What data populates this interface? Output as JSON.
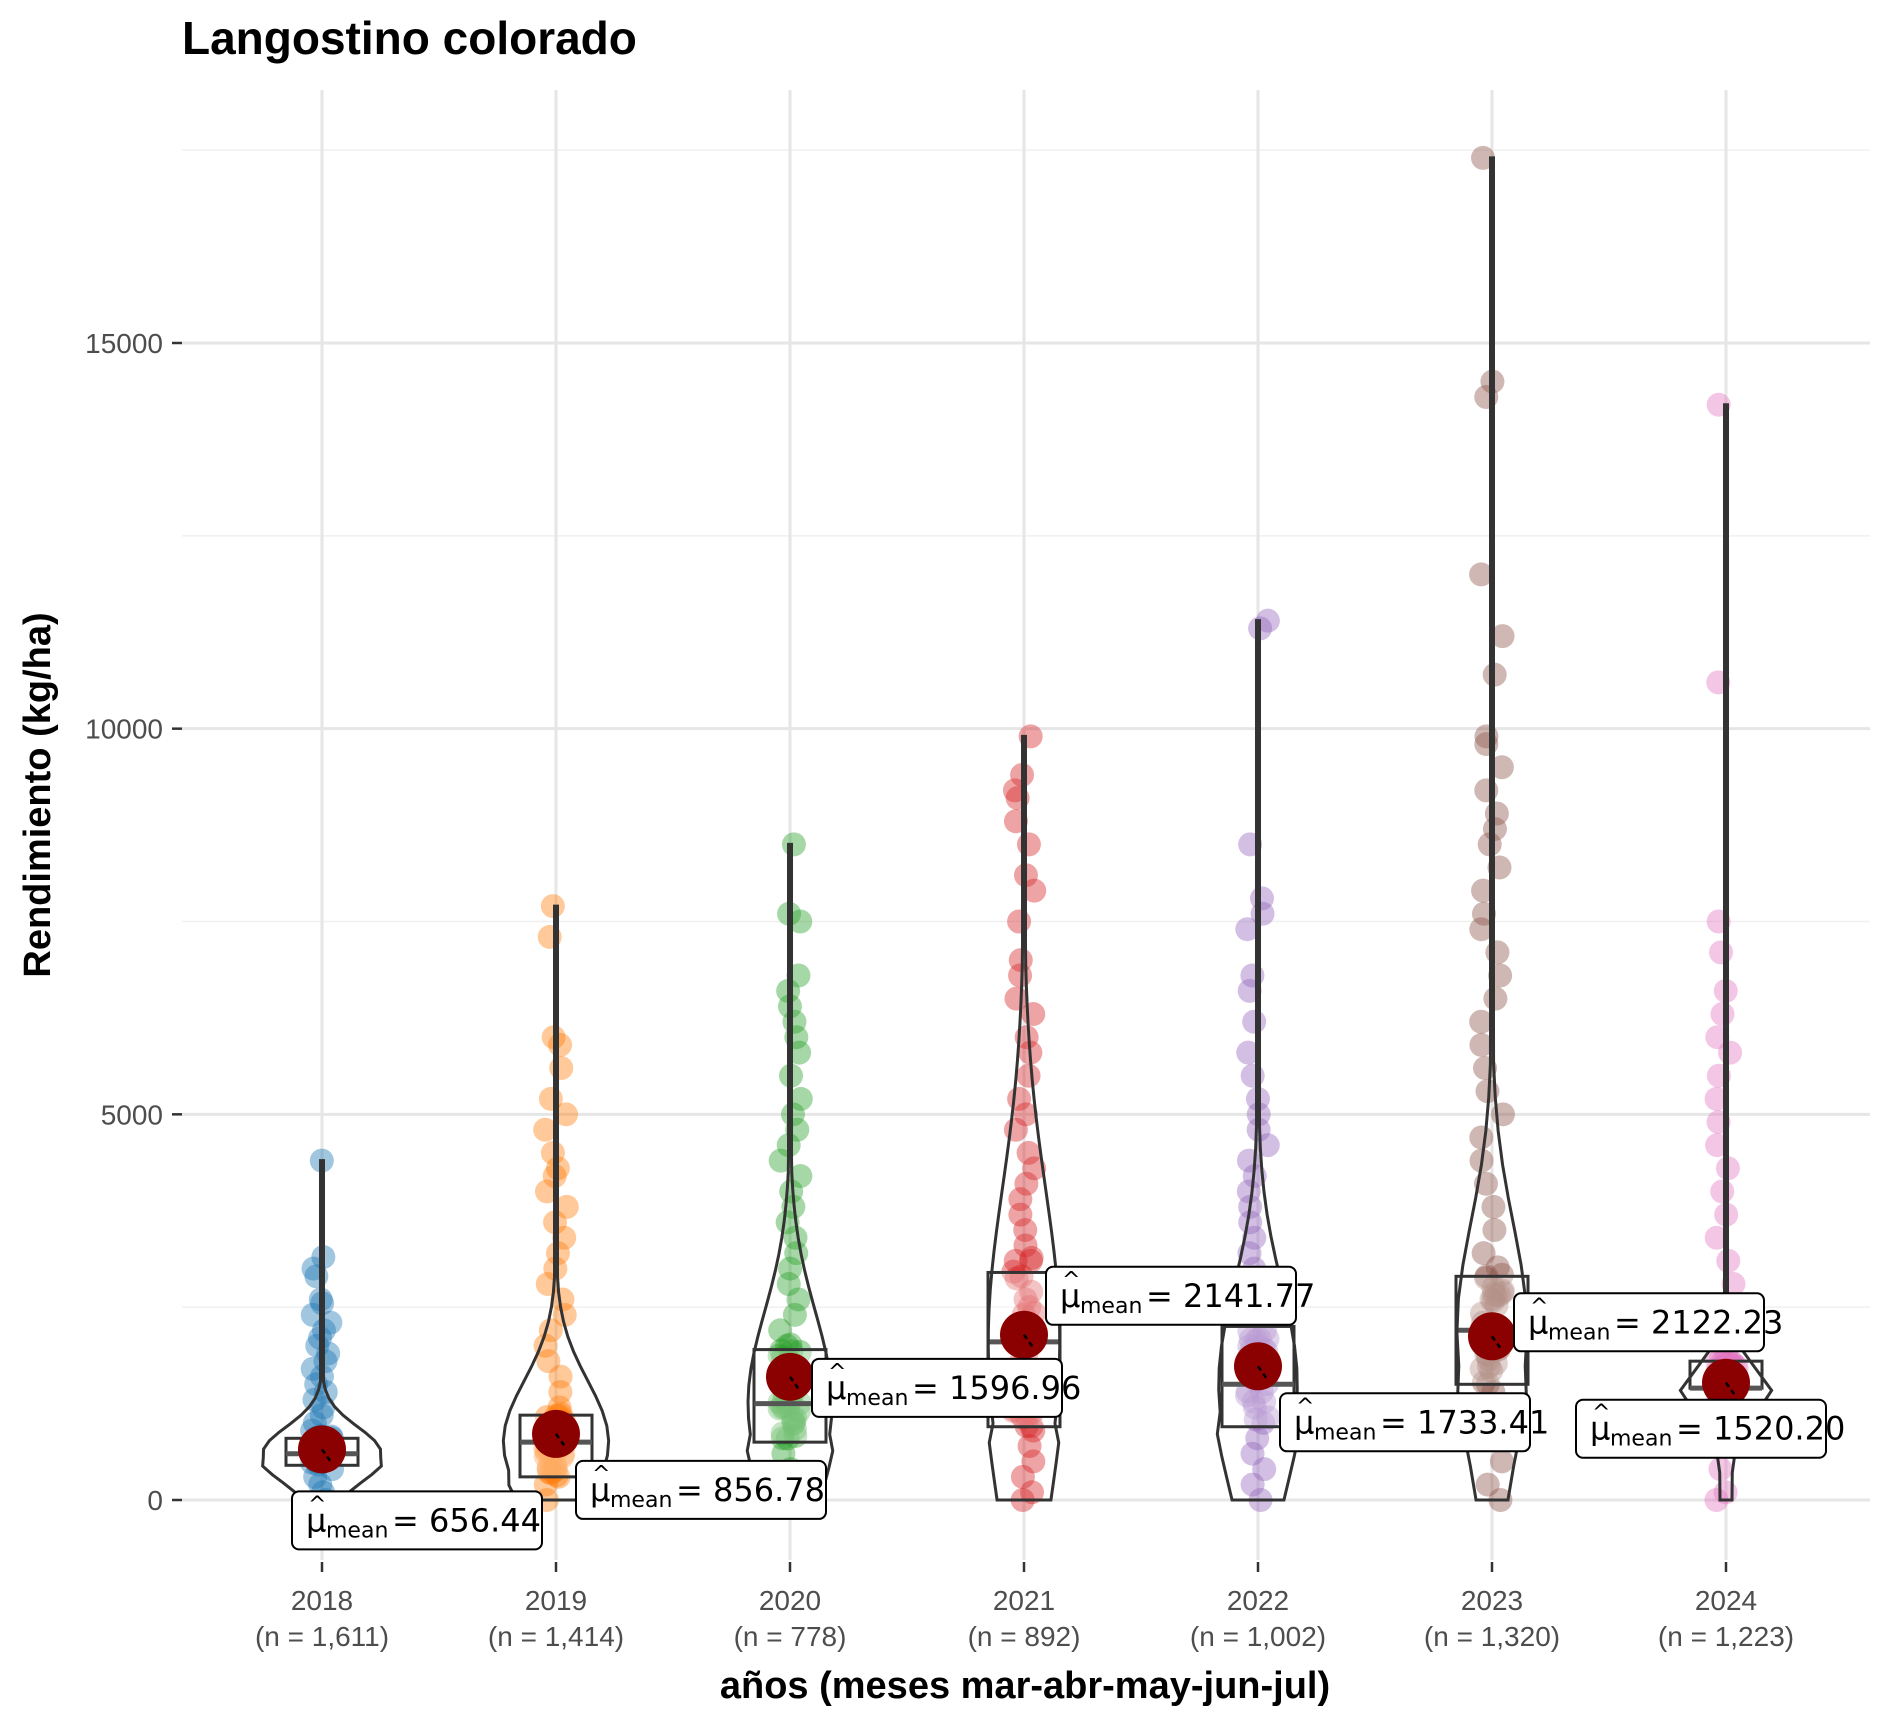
{
  "chart_data": {
    "type": "violin-box-scatter",
    "title": "Langostino colorado",
    "xlabel": "años (meses mar-abr-may-jun-jul)",
    "ylabel": "Rendimiento (kg/ha)",
    "ylim": [
      -800,
      17800
    ],
    "yticks": [
      0,
      5000,
      10000,
      15000
    ],
    "grid": true,
    "legend": "none",
    "mean_prefix": "μ",
    "mean_subscript": "mean",
    "groups": [
      {
        "category": "2018",
        "n_label": "(n = 1,611)",
        "color": "#1f77b4",
        "mean": 656.44,
        "mean_label": "= 656.44",
        "q1": 450,
        "median": 600,
        "q3": 800,
        "max": 4400,
        "outliers": [
          4400,
          3150,
          3000,
          2900,
          2600,
          2550,
          2400,
          2300,
          2200,
          2100,
          2000,
          1900,
          1800,
          1700,
          1600,
          1500,
          1400,
          1300,
          1200,
          1100,
          1000,
          900,
          800,
          700,
          600,
          500,
          400,
          300,
          200,
          100,
          0
        ]
      },
      {
        "category": "2019",
        "n_label": "(n = 1,414)",
        "color": "#ff7f0e",
        "mean": 856.78,
        "mean_label": "= 856.78",
        "q1": 300,
        "median": 750,
        "q3": 1100,
        "max": 7700,
        "outliers": [
          7700,
          7300,
          6000,
          5900,
          5600,
          5200,
          5000,
          4800,
          4500,
          4300,
          4200,
          4000,
          3800,
          3600,
          3400,
          3200,
          3000,
          2800,
          2600,
          2400,
          2200,
          2000,
          1800,
          1600,
          1400,
          1200,
          1000,
          800,
          600,
          400,
          200,
          0
        ]
      },
      {
        "category": "2020",
        "n_label": "(n = 778)",
        "color": "#2ca02c",
        "mean": 1596.96,
        "mean_label": "= 1596.96",
        "q1": 750,
        "median": 1250,
        "q3": 1950,
        "max": 8500,
        "outliers": [
          8500,
          7600,
          7500,
          6800,
          6600,
          6400,
          6200,
          6000,
          5800,
          5500,
          5200,
          5000,
          4800,
          4600,
          4400,
          4200,
          4000,
          3800,
          3600,
          3400,
          3200,
          3000,
          2800,
          2600,
          2400,
          2200,
          2000,
          1800,
          1600,
          1400,
          1200,
          1000,
          800,
          600,
          400,
          200,
          0
        ]
      },
      {
        "category": "2021",
        "n_label": "(n = 892)",
        "color": "#d62728",
        "mean": 2141.77,
        "mean_label": "= 2141.77",
        "q1": 950,
        "median": 2050,
        "q3": 2950,
        "max": 9900,
        "outliers": [
          9900,
          9400,
          9200,
          9100,
          8800,
          8500,
          8100,
          7900,
          7500,
          7000,
          6800,
          6500,
          6300,
          6000,
          5800,
          5500,
          5200,
          5000,
          4800,
          4500,
          4300,
          4100,
          3900,
          3700,
          3500,
          3300,
          3100,
          2900,
          2700,
          2500,
          2300,
          2100,
          1900,
          1700,
          1500,
          1300,
          1100,
          900,
          700,
          500,
          300,
          100,
          0
        ]
      },
      {
        "category": "2022",
        "n_label": "(n = 1,002)",
        "color": "#9467bd",
        "mean": 1733.41,
        "mean_label": "= 1733.41",
        "q1": 950,
        "median": 1500,
        "q3": 2250,
        "max": 11400,
        "outliers": [
          11400,
          11300,
          8500,
          7800,
          7600,
          7400,
          6800,
          6600,
          6200,
          5800,
          5500,
          5200,
          5000,
          4800,
          4600,
          4400,
          4200,
          4000,
          3800,
          3600,
          3400,
          3200,
          3000,
          2800,
          2600,
          2400,
          2200,
          2000,
          1800,
          1600,
          1400,
          1200,
          1000,
          800,
          600,
          400,
          200,
          0
        ]
      },
      {
        "category": "2023",
        "n_label": "(n = 1,320)",
        "color": "#8c564b",
        "mean": 2122.23,
        "mean_label": "= 2122.23",
        "q1": 1500,
        "median": 2200,
        "q3": 2900,
        "max": 17400,
        "outliers": [
          17400,
          14500,
          14300,
          12000,
          11200,
          10700,
          9900,
          9800,
          9500,
          9200,
          8900,
          8700,
          8500,
          8200,
          7900,
          7600,
          7400,
          7100,
          6800,
          6500,
          6200,
          5900,
          5600,
          5300,
          5000,
          4700,
          4400,
          4100,
          3800,
          3500,
          3200,
          2900,
          2600,
          2300,
          2000,
          1700,
          1400,
          1100,
          800,
          500,
          200,
          0
        ]
      },
      {
        "category": "2024",
        "n_label": "(n = 1,223)",
        "color": "#e377c2",
        "mean": 1520.2,
        "mean_label": "= 1520.20",
        "q1": 1450,
        "median": 1450,
        "q3": 1800,
        "max": 14200,
        "outliers": [
          14200,
          10600,
          7500,
          7100,
          6600,
          6300,
          6000,
          5800,
          5500,
          5200,
          4900,
          4600,
          4300,
          4000,
          3700,
          3400,
          3100,
          2800,
          2500,
          2200,
          1900,
          1600,
          1300,
          1000,
          700,
          400,
          100,
          0
        ]
      }
    ]
  }
}
